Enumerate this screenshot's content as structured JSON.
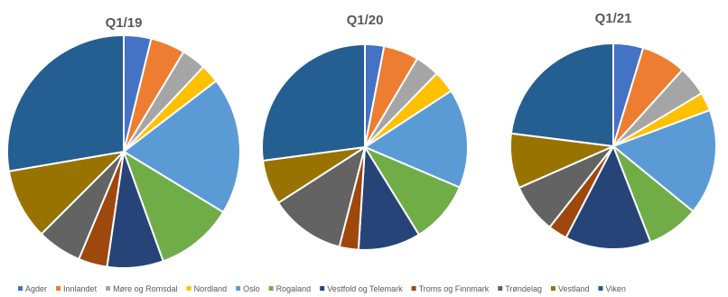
{
  "chart_data": [
    {
      "type": "pie",
      "title": "Q1/19",
      "categories": [
        "Agder",
        "Innlandet",
        "Møre og Romsdal",
        "Nordland",
        "Oslo",
        "Rogaland",
        "Vestfold og Telemark",
        "Troms og Finnmark",
        "Trøndelag",
        "Vestland",
        "Viken"
      ],
      "values": [
        3.8,
        4.8,
        3.4,
        2.6,
        19.1,
        10.8,
        7.8,
        4.0,
        6.2,
        9.8,
        27.7
      ]
    },
    {
      "type": "pie",
      "title": "Q1/20",
      "categories": [
        "Agder",
        "Innlandet",
        "Møre og Romsdal",
        "Nordland",
        "Oslo",
        "Rogaland",
        "Vestfold og Telemark",
        "Troms og Finnmark",
        "Trøndelag",
        "Vestland",
        "Viken"
      ],
      "values": [
        3.0,
        5.5,
        3.8,
        3.5,
        15.6,
        9.8,
        9.8,
        3.0,
        11.9,
        7.0,
        27.1
      ]
    },
    {
      "type": "pie",
      "title": "Q1/21",
      "categories": [
        "Agder",
        "Innlandet",
        "Møre og Romsdal",
        "Nordland",
        "Oslo",
        "Rogaland",
        "Vestfold og Telemark",
        "Troms og Finnmark",
        "Trøndelag",
        "Vestland",
        "Viken"
      ],
      "values": [
        4.7,
        7.0,
        4.7,
        2.9,
        16.6,
        8.2,
        13.5,
        3.0,
        7.8,
        8.6,
        23.0
      ]
    }
  ],
  "legend": {
    "position": "bottom",
    "items": [
      {
        "label": "Agder",
        "color": "#4472C4"
      },
      {
        "label": "Innlandet",
        "color": "#ED7D31"
      },
      {
        "label": "Møre og Romsdal",
        "color": "#A5A5A5"
      },
      {
        "label": "Nordland",
        "color": "#FFC000"
      },
      {
        "label": "Oslo",
        "color": "#5B9BD5"
      },
      {
        "label": "Rogaland",
        "color": "#70AD47"
      },
      {
        "label": "Vestfold og Telemark",
        "color": "#264478"
      },
      {
        "label": "Troms og Finnmark",
        "color": "#9E480E"
      },
      {
        "label": "Trøndelag",
        "color": "#636363"
      },
      {
        "label": "Vestland",
        "color": "#997300"
      },
      {
        "label": "Viken",
        "color": "#255E91"
      }
    ]
  }
}
